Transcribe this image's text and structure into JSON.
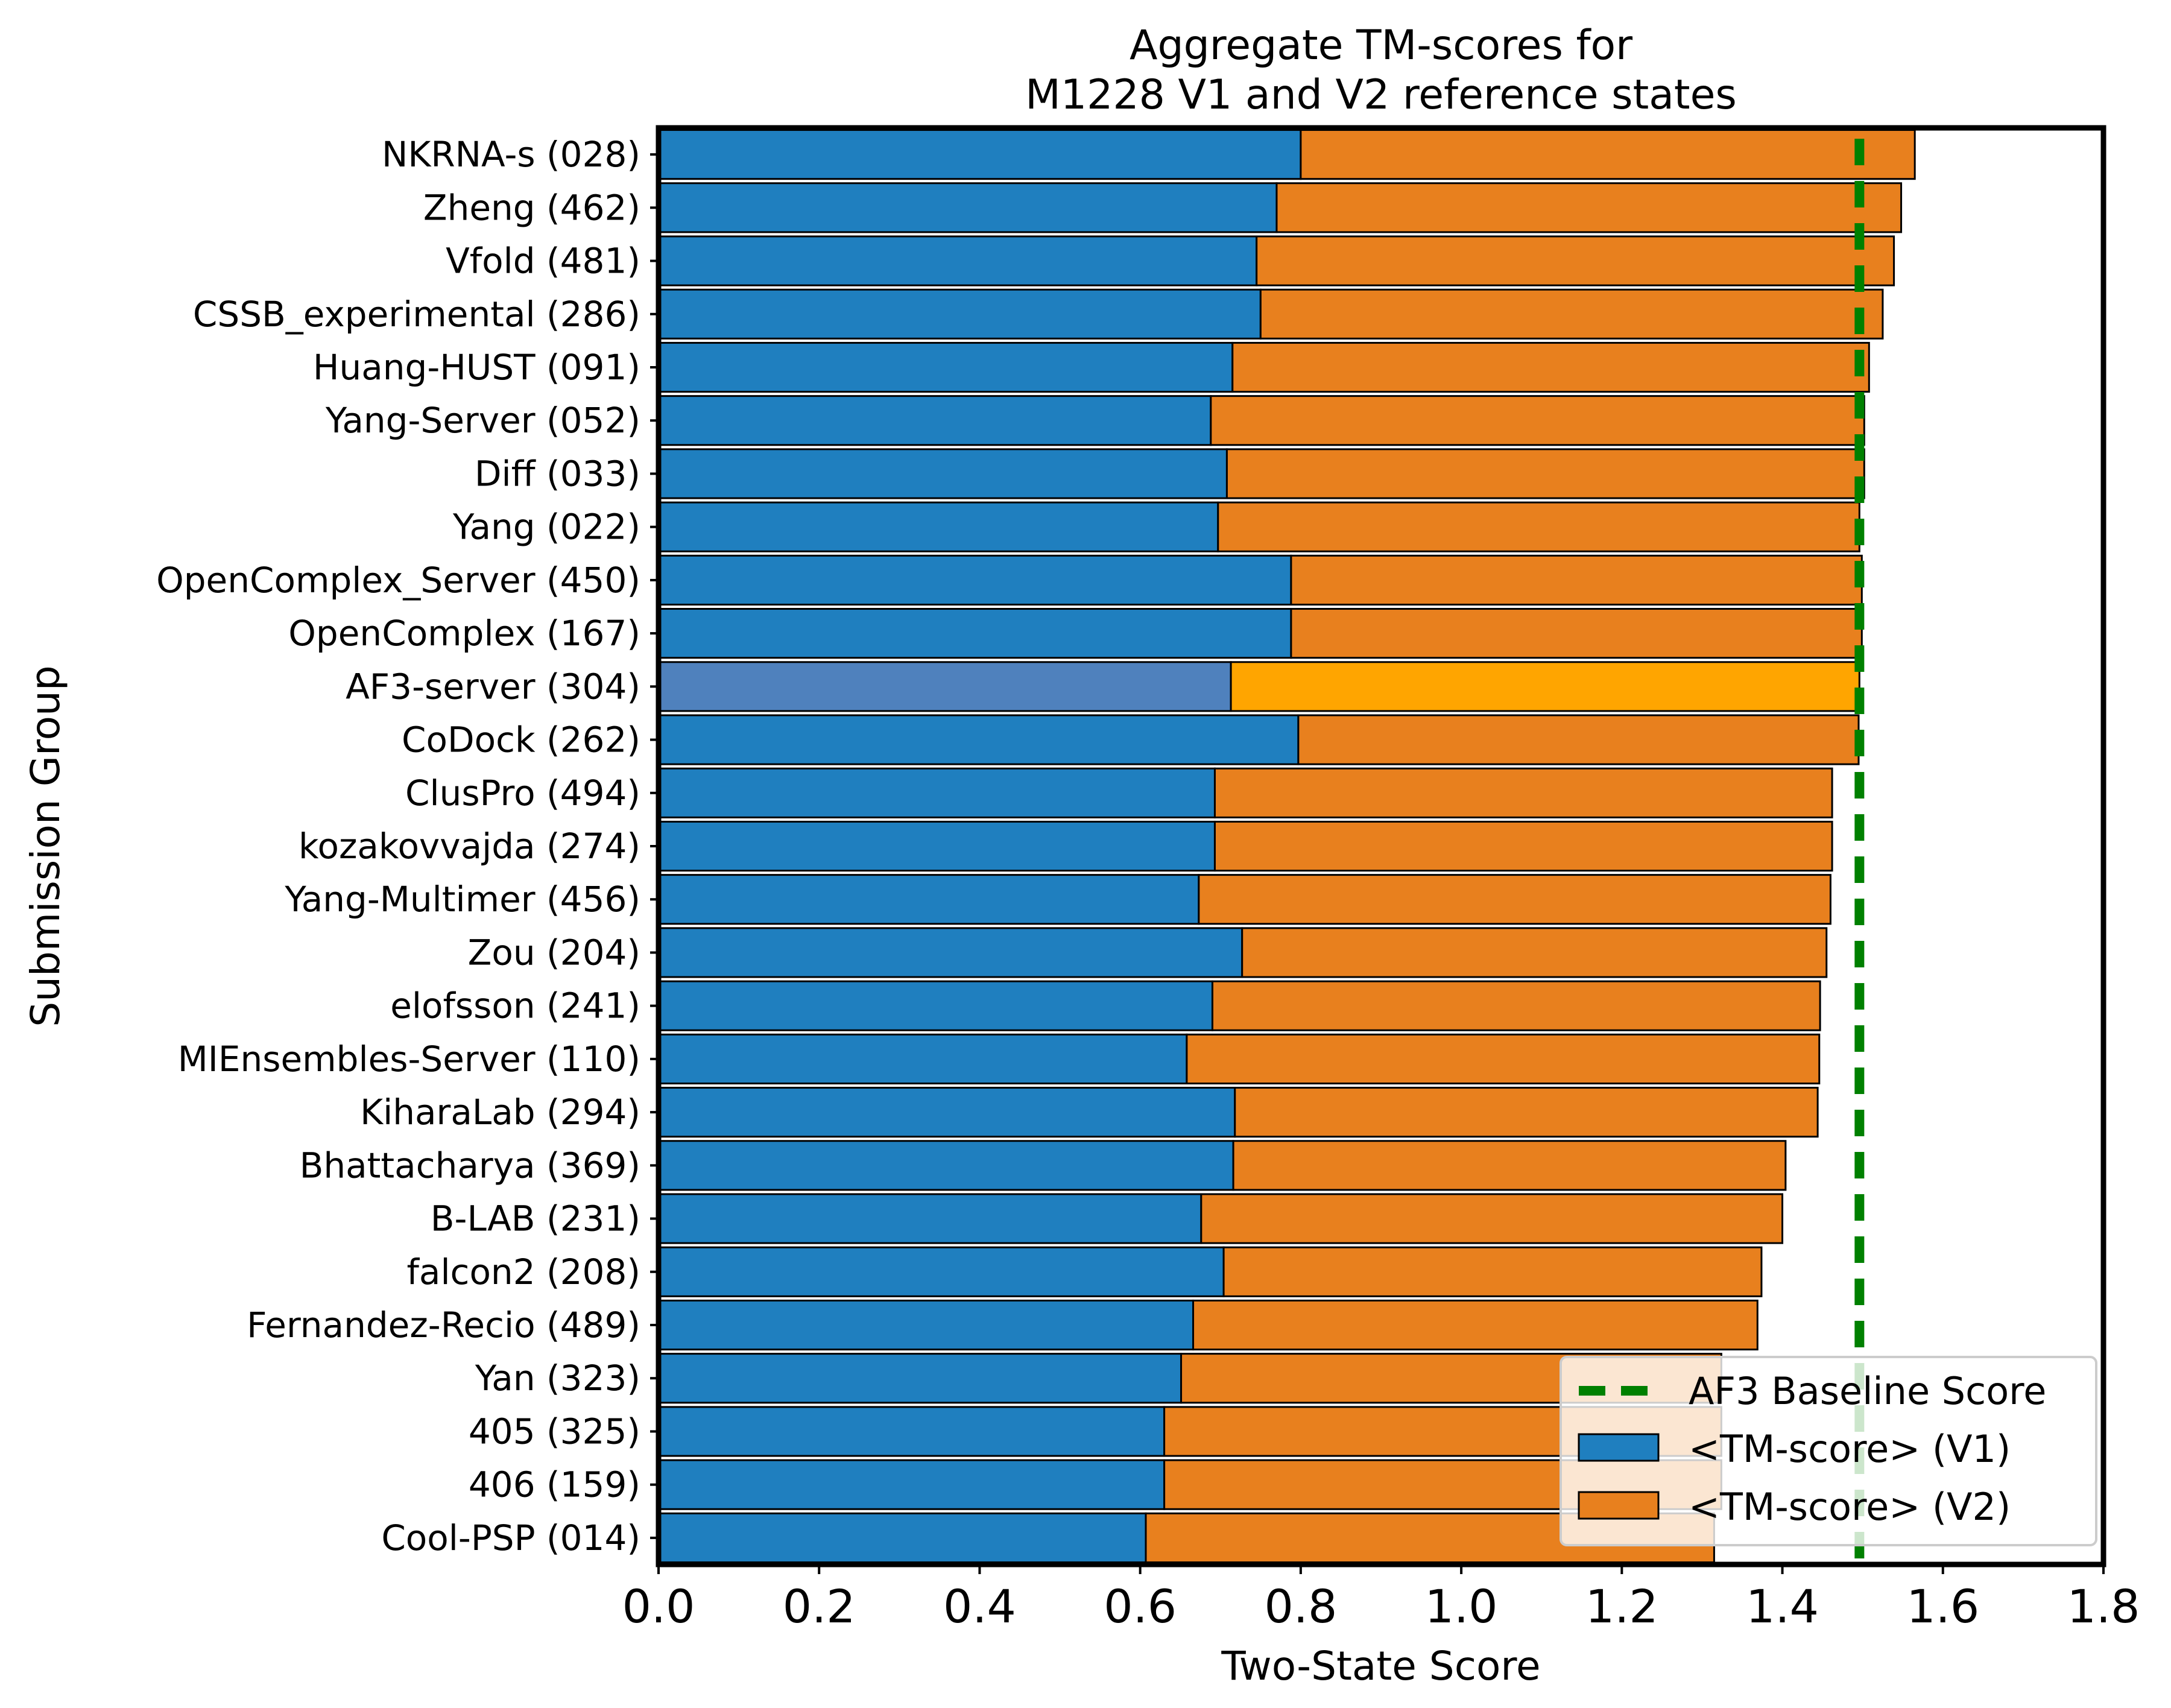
{
  "chart_data": {
    "type": "bar",
    "orientation": "horizontal",
    "stacked": true,
    "title": [
      "Aggregate TM-scores for",
      "M1228 V1 and V2 reference states"
    ],
    "xlabel": "Two-State Score",
    "ylabel": "Submission Group",
    "xlim": [
      0.0,
      1.8
    ],
    "xticks": [
      "0.0",
      "0.2",
      "0.4",
      "0.6",
      "0.8",
      "1.0",
      "1.2",
      "1.4",
      "1.6",
      "1.8"
    ],
    "grid": false,
    "legend_position": "lower-right",
    "categories": [
      "NKRNA-s (028)",
      "Zheng (462)",
      "Vfold (481)",
      "CSSB_experimental (286)",
      "Huang-HUST (091)",
      "Yang-Server (052)",
      "Diff (033)",
      "Yang (022)",
      "OpenComplex_Server (450)",
      "OpenComplex (167)",
      "AF3-server (304)",
      "CoDock (262)",
      "ClusPro (494)",
      "kozakovvajda (274)",
      "Yang-Multimer (456)",
      "Zou (204)",
      "elofsson (241)",
      "MIEnsembles-Server (110)",
      "KiharaLab (294)",
      "Bhattacharya (369)",
      "B-LAB (231)",
      "falcon2 (208)",
      "Fernandez-Recio (489)",
      "Yan (323)",
      "405 (325)",
      "406 (159)",
      "Cool-PSP (014)"
    ],
    "series": [
      {
        "name": "<TM-score> (V1)",
        "color": "#1f7fbf",
        "values": [
          0.8,
          0.77,
          0.745,
          0.75,
          0.715,
          0.688,
          0.708,
          0.697,
          0.788,
          0.788,
          0.713,
          0.797,
          0.693,
          0.693,
          0.673,
          0.727,
          0.69,
          0.658,
          0.718,
          0.716,
          0.676,
          0.704,
          0.666,
          0.651,
          0.63,
          0.63,
          0.607
        ]
      },
      {
        "name": "<TM-score> (V2)",
        "color": "#e8801e",
        "values": [
          0.765,
          0.778,
          0.794,
          0.775,
          0.793,
          0.814,
          0.794,
          0.799,
          0.711,
          0.711,
          0.783,
          0.698,
          0.769,
          0.769,
          0.787,
          0.728,
          0.757,
          0.788,
          0.726,
          0.688,
          0.724,
          0.67,
          0.703,
          0.673,
          0.694,
          0.694,
          0.708
        ]
      }
    ],
    "highlight": {
      "category": "AF3-server (304)",
      "v1_color": "#4f81bd",
      "v2_color": "#ffa500"
    },
    "baseline": {
      "name": "AF3 Baseline Score",
      "value": 1.496,
      "color": "#008000"
    }
  }
}
